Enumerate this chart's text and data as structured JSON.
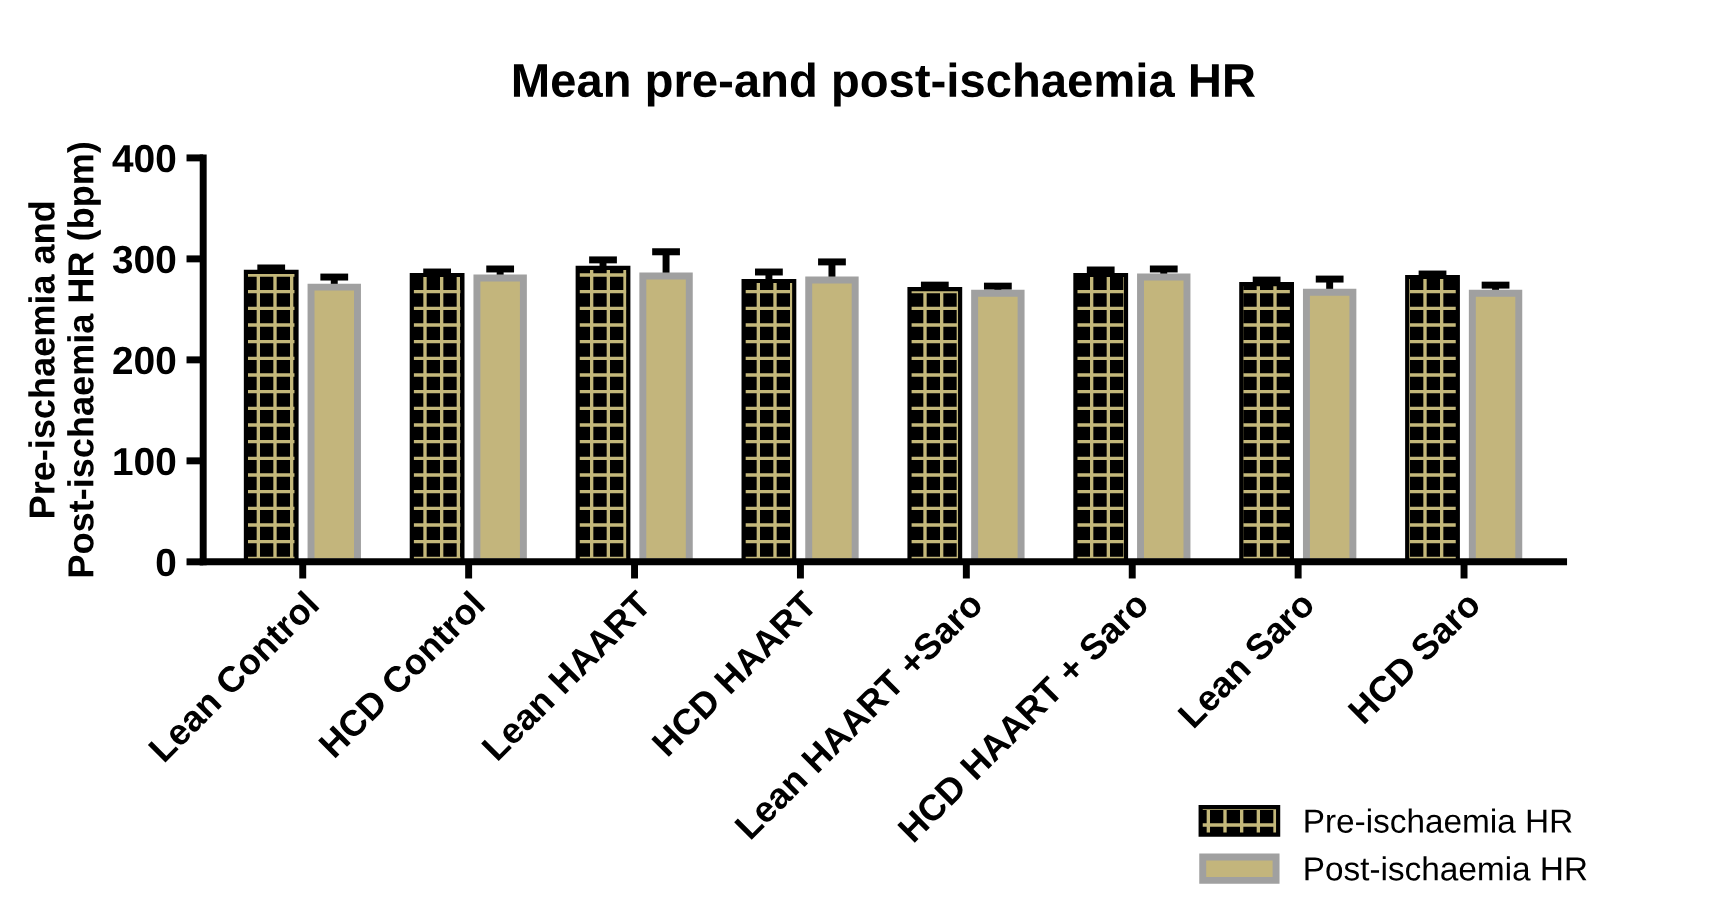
{
  "chart_data": {
    "type": "bar",
    "title": "Mean pre-and post-ischaemia HR",
    "ylabel": "Pre-ischaemia and\nPost-ischaemia HR (bpm)",
    "categories": [
      "Lean Control",
      "HCD Control",
      "Lean HAART",
      "HCD HAART",
      "Lean HAART +Saro",
      "HCD HAART + Saro",
      "Lean Saro",
      "HCD Saro"
    ],
    "series": [
      {
        "name": "Pre-ischaemia HR",
        "color": "#000000",
        "values": [
          285,
          282,
          289,
          276,
          268,
          282,
          273,
          280
        ],
        "errors": [
          6,
          5,
          10,
          11,
          6,
          7,
          6,
          5
        ]
      },
      {
        "name": "Post-ischaemia HR",
        "color": "#c3b57c",
        "values": [
          272,
          281,
          283,
          279,
          266,
          282,
          267,
          266
        ],
        "errors": [
          10,
          9,
          24,
          18,
          7,
          8,
          13,
          8
        ]
      }
    ],
    "ylim": [
      0,
      400
    ],
    "yticks": [
      0,
      100,
      200,
      300,
      400
    ],
    "grid": false,
    "legend": "bottom right"
  }
}
